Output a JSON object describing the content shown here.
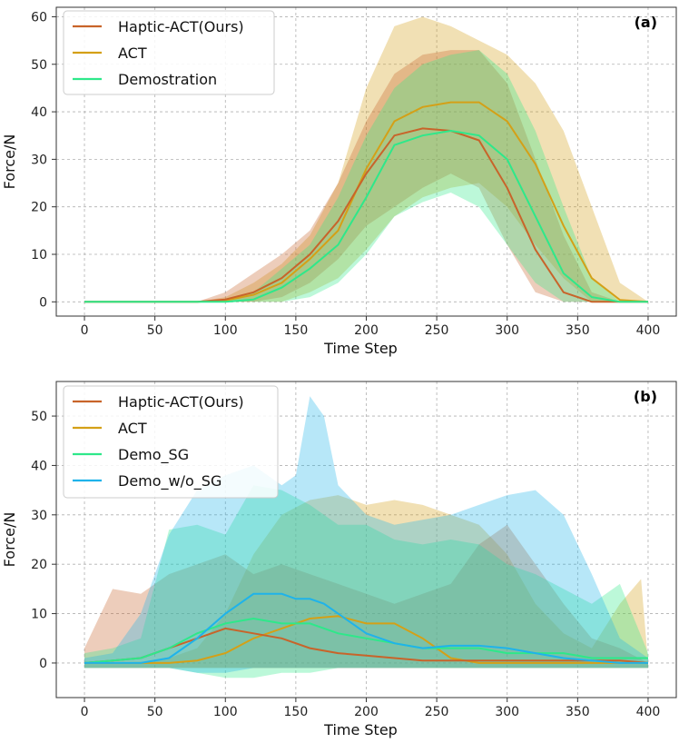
{
  "chart_data": [
    {
      "type": "line",
      "panel_label": "(a)",
      "xlabel": "Time Step",
      "ylabel": "Force/N",
      "xlim": [
        -20,
        420
      ],
      "ylim": [
        -3,
        62
      ],
      "xticks": [
        0,
        50,
        100,
        150,
        200,
        250,
        300,
        350,
        400
      ],
      "yticks": [
        0,
        10,
        20,
        30,
        40,
        50,
        60
      ],
      "grid": true,
      "legend_position": "top-left",
      "series": [
        {
          "name": "ACT",
          "color": "#d4a017",
          "x": [
            0,
            30,
            60,
            80,
            100,
            120,
            140,
            160,
            180,
            200,
            220,
            240,
            260,
            280,
            300,
            320,
            340,
            360,
            380,
            400
          ],
          "mean": [
            0,
            0,
            0,
            0,
            0.3,
            1.5,
            4,
            9,
            15,
            28,
            38,
            41,
            42,
            42,
            38,
            29,
            16,
            5,
            0.4,
            0
          ],
          "upper": [
            0,
            0,
            0,
            0,
            1,
            4,
            8,
            14,
            25,
            45,
            58,
            60,
            58,
            55,
            52,
            46,
            36,
            20,
            4,
            0
          ],
          "lower": [
            0,
            0,
            0,
            0,
            0,
            0,
            0,
            2,
            5,
            11,
            18,
            22,
            24,
            25,
            20,
            12,
            5,
            0,
            0,
            0
          ]
        },
        {
          "name": "Haptic-ACT(Ours)",
          "color": "#c8642a",
          "x": [
            0,
            30,
            60,
            80,
            100,
            120,
            140,
            160,
            180,
            200,
            220,
            240,
            260,
            280,
            300,
            320,
            340,
            360,
            380,
            400
          ],
          "mean": [
            0,
            0,
            0,
            0,
            0.5,
            2,
            5,
            10,
            17,
            27,
            35,
            36.5,
            36,
            34,
            24,
            11,
            2,
            0,
            0,
            0
          ],
          "upper": [
            0,
            0,
            0,
            0,
            2,
            6,
            10,
            15,
            25,
            38,
            48,
            52,
            53,
            53,
            46,
            30,
            14,
            2,
            0,
            0
          ],
          "lower": [
            0,
            0,
            0,
            0,
            0,
            0,
            1,
            4,
            9,
            16,
            20,
            24,
            27,
            24,
            12,
            2,
            0,
            0,
            0,
            0
          ]
        },
        {
          "name": "Demostration",
          "color": "#2ee88a",
          "x": [
            0,
            30,
            60,
            80,
            100,
            120,
            140,
            160,
            180,
            200,
            220,
            240,
            260,
            280,
            300,
            320,
            340,
            360,
            380,
            400
          ],
          "mean": [
            0,
            0,
            0,
            0,
            0,
            0.5,
            3,
            7,
            12,
            22,
            33,
            35,
            36,
            35,
            30,
            18,
            6,
            1,
            0,
            0
          ],
          "upper": [
            0,
            0,
            0,
            0,
            0,
            2,
            7,
            12,
            22,
            35,
            45,
            50,
            52,
            53,
            48,
            36,
            20,
            5,
            0,
            0
          ],
          "lower": [
            0,
            0,
            0,
            0,
            0,
            0,
            0,
            1,
            4,
            10,
            18,
            21,
            23,
            20,
            12,
            4,
            0,
            0,
            0,
            0
          ]
        }
      ]
    },
    {
      "type": "line",
      "panel_label": "(b)",
      "xlabel": "Time Step",
      "ylabel": "Force/N",
      "xlim": [
        -20,
        420
      ],
      "ylim": [
        -7,
        57
      ],
      "xticks": [
        0,
        50,
        100,
        150,
        200,
        250,
        300,
        350,
        400
      ],
      "yticks": [
        0,
        10,
        20,
        30,
        40,
        50
      ],
      "grid": true,
      "legend_position": "top-left",
      "series": [
        {
          "name": "ACT",
          "color": "#d4a017",
          "x": [
            0,
            20,
            40,
            60,
            80,
            100,
            120,
            140,
            160,
            180,
            200,
            220,
            240,
            260,
            280,
            300,
            320,
            340,
            360,
            380,
            395,
            400
          ],
          "mean": [
            0,
            0,
            0,
            0,
            0.5,
            2,
            5,
            7,
            9,
            9.5,
            8,
            8,
            5,
            1,
            0,
            0,
            0,
            0,
            0,
            0,
            0,
            0
          ],
          "upper": [
            0,
            0,
            0,
            1,
            3,
            10,
            22,
            30,
            33,
            34,
            32,
            33,
            32,
            30,
            28,
            22,
            12,
            6,
            3,
            12,
            17,
            0
          ],
          "lower": [
            -1,
            -1,
            -1,
            -1,
            -1,
            -1,
            -1,
            -1,
            -1,
            -1,
            -1,
            -1,
            -1,
            -1,
            -1,
            -1,
            -1,
            -1,
            -1,
            -1,
            -1,
            -1
          ]
        },
        {
          "name": "Haptic-ACT(Ours)",
          "color": "#c8642a",
          "x": [
            0,
            20,
            40,
            60,
            80,
            100,
            120,
            140,
            160,
            180,
            200,
            220,
            240,
            260,
            280,
            300,
            320,
            340,
            360,
            380,
            400
          ],
          "mean": [
            0,
            0.5,
            1,
            3,
            5,
            7,
            6,
            5,
            3,
            2,
            1.5,
            1,
            0.5,
            0.5,
            0.5,
            0.5,
            0.5,
            0.5,
            0.5,
            0.5,
            0
          ],
          "upper": [
            3,
            15,
            14,
            18,
            20,
            22,
            18,
            20,
            18,
            16,
            14,
            12,
            14,
            16,
            24,
            28,
            20,
            12,
            5,
            3,
            0
          ],
          "lower": [
            -1,
            -1,
            -1,
            -1,
            -1,
            -1,
            -1,
            -1,
            -1,
            -1,
            -1,
            -1,
            -1,
            -1,
            -1,
            -1,
            -1,
            -1,
            -1,
            -1,
            -1
          ]
        },
        {
          "name": "Demo_SG",
          "color": "#2ee88a",
          "x": [
            0,
            20,
            40,
            60,
            80,
            100,
            120,
            140,
            160,
            180,
            200,
            220,
            240,
            260,
            280,
            300,
            320,
            340,
            360,
            380,
            400
          ],
          "mean": [
            0,
            0.5,
            1,
            3,
            6,
            8,
            9,
            8,
            8,
            6,
            5,
            4,
            3,
            3,
            3,
            2,
            2,
            2,
            1,
            1,
            1
          ],
          "upper": [
            2,
            3,
            5,
            27,
            28,
            26,
            36,
            35,
            32,
            28,
            28,
            25,
            24,
            25,
            24,
            20,
            18,
            15,
            12,
            16,
            2
          ],
          "lower": [
            -1,
            -1,
            -1,
            -1,
            -2,
            -3,
            -3,
            -2,
            -2,
            -1,
            -1,
            -1,
            -1,
            -1,
            -1,
            -1,
            -1,
            -1,
            -1,
            -1,
            -1
          ]
        },
        {
          "name": "Demo_w/o_SG",
          "color": "#1fb3ea",
          "x": [
            0,
            20,
            40,
            60,
            80,
            100,
            120,
            140,
            150,
            160,
            170,
            180,
            200,
            220,
            240,
            260,
            280,
            300,
            320,
            340,
            360,
            380,
            400
          ],
          "mean": [
            0,
            0,
            0,
            1,
            5,
            10,
            14,
            14,
            13,
            13,
            12,
            10,
            6,
            4,
            3,
            3.5,
            3.5,
            3,
            2,
            1,
            0.5,
            0,
            0
          ],
          "upper": [
            1,
            2,
            10,
            26,
            35,
            38,
            40,
            36,
            38,
            54,
            50,
            36,
            30,
            28,
            29,
            30,
            32,
            34,
            35,
            30,
            18,
            5,
            1
          ],
          "lower": [
            -1,
            -1,
            -1,
            -1,
            -2,
            -2,
            -1,
            -1,
            -1,
            -1,
            -1,
            -1,
            -1,
            -1,
            -1,
            -1,
            -1,
            -1,
            -1,
            -1,
            -1,
            -1,
            -1
          ]
        }
      ]
    }
  ]
}
